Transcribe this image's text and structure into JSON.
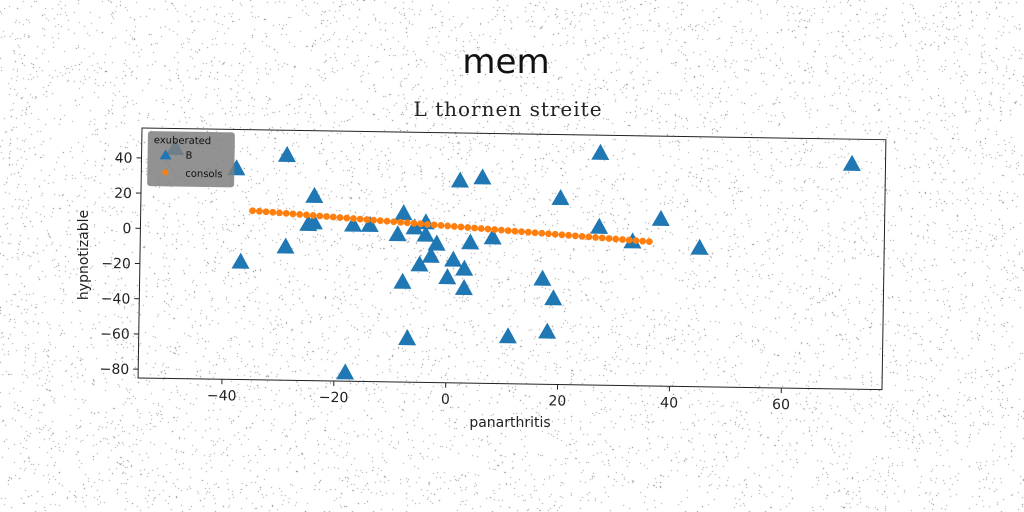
{
  "suptitle": "mem",
  "chart_data": {
    "type": "scatter",
    "title": "L thornen streite",
    "xlabel": "panarthritis",
    "ylabel": "hypnotizable",
    "xlim": [
      -55,
      78
    ],
    "ylim": [
      -85,
      57
    ],
    "xticks": [
      -40,
      -20,
      0,
      20,
      40,
      60
    ],
    "yticks": [
      -80,
      -60,
      -40,
      -20,
      0,
      20,
      40
    ],
    "grid": false,
    "legend": {
      "title": "exuberated",
      "placement": "top-left"
    },
    "colors": {
      "B": "#1f77b4",
      "consols": "#ff7f0e"
    },
    "series": [
      {
        "name": "B",
        "marker": "triangle",
        "points": [
          [
            -49,
            46
          ],
          [
            -38,
            35
          ],
          [
            -29,
            43
          ],
          [
            -24,
            20
          ],
          [
            -25,
            4
          ],
          [
            -24,
            5
          ],
          [
            -29,
            -9
          ],
          [
            -37,
            -18
          ],
          [
            -17,
            4
          ],
          [
            -14,
            4
          ],
          [
            -8,
            11
          ],
          [
            -9,
            -1
          ],
          [
            -6,
            3
          ],
          [
            -4,
            6
          ],
          [
            -4,
            -1
          ],
          [
            -2,
            -6
          ],
          [
            -3,
            -13
          ],
          [
            -5,
            -18
          ],
          [
            -8,
            -28
          ],
          [
            -7,
            -60
          ],
          [
            -18,
            -80
          ],
          [
            0,
            -25
          ],
          [
            1,
            -15
          ],
          [
            3,
            -20
          ],
          [
            3,
            -31
          ],
          [
            4,
            -5
          ],
          [
            2,
            30
          ],
          [
            6,
            32
          ],
          [
            8,
            -2
          ],
          [
            11,
            -58
          ],
          [
            17,
            -25
          ],
          [
            18,
            -55
          ],
          [
            19,
            -36
          ],
          [
            20,
            21
          ],
          [
            27,
            47
          ],
          [
            27,
            5
          ],
          [
            33,
            -3
          ],
          [
            38,
            10
          ],
          [
            45,
            -6
          ],
          [
            72,
            43
          ]
        ]
      },
      {
        "name": "consols",
        "marker": "circle",
        "line": {
          "x0": -35,
          "x1": 36,
          "y0": 11,
          "y1": -3,
          "n": 60
        }
      }
    ]
  }
}
